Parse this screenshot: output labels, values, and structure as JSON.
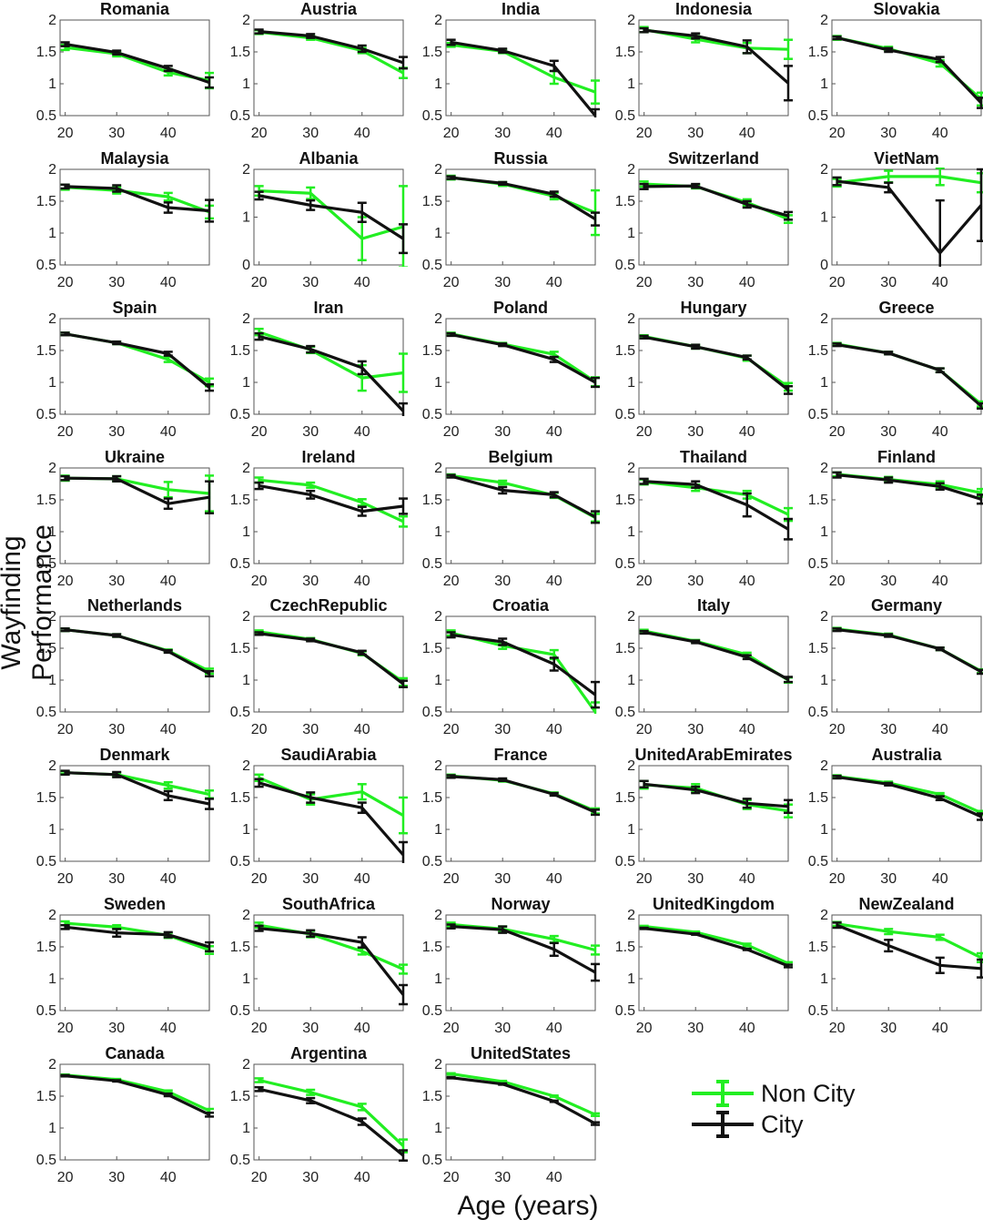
{
  "figure": {
    "ylabel": "Wayfinding Performance",
    "xlabel": "Age (years)"
  },
  "legend": [
    {
      "name": "Non City",
      "color": "#22ee22"
    },
    {
      "name": "City",
      "color": "#111111"
    }
  ],
  "chart_data": {
    "type": "line",
    "layout": "small-multiples",
    "x": [
      20,
      30,
      40,
      48
    ],
    "xticks": [
      20,
      30,
      40
    ],
    "xlim": [
      19,
      48
    ],
    "default_ylim": [
      0.5,
      2
    ],
    "default_yticks": [
      "0.5",
      "1",
      "1.5",
      "2"
    ],
    "series_colors": {
      "noncity": "#22ee22",
      "city": "#111111"
    },
    "panels": [
      {
        "title": "Romania",
        "noncity": [
          1.57,
          1.47,
          1.18,
          1.05
        ],
        "city": [
          1.62,
          1.49,
          1.24,
          1.02
        ],
        "nerr": [
          0.04,
          0.04,
          0.05,
          0.12
        ],
        "cerr": [
          0.03,
          0.03,
          0.04,
          0.08
        ]
      },
      {
        "title": "Austria",
        "noncity": [
          1.81,
          1.72,
          1.52,
          1.17
        ],
        "city": [
          1.82,
          1.75,
          1.55,
          1.33
        ],
        "nerr": [
          0.03,
          0.03,
          0.04,
          0.08
        ],
        "cerr": [
          0.03,
          0.03,
          0.05,
          0.09
        ]
      },
      {
        "title": "India",
        "noncity": [
          1.61,
          1.51,
          1.1,
          0.87
        ],
        "city": [
          1.65,
          1.52,
          1.28,
          0.5
        ],
        "nerr": [
          0.03,
          0.03,
          0.1,
          0.18
        ],
        "cerr": [
          0.04,
          0.03,
          0.08,
          0.1
        ]
      },
      {
        "title": "Indonesia",
        "noncity": [
          1.85,
          1.7,
          1.56,
          1.54
        ],
        "city": [
          1.84,
          1.75,
          1.58,
          1.01
        ],
        "nerr": [
          0.04,
          0.05,
          0.08,
          0.15
        ],
        "cerr": [
          0.03,
          0.04,
          0.1,
          0.27
        ]
      },
      {
        "title": "Slovakia",
        "noncity": [
          1.72,
          1.55,
          1.32,
          0.76
        ],
        "city": [
          1.72,
          1.53,
          1.38,
          0.7
        ],
        "nerr": [
          0.03,
          0.03,
          0.05,
          0.1
        ],
        "cerr": [
          0.02,
          0.03,
          0.04,
          0.08
        ]
      },
      {
        "title": "Malaysia",
        "noncity": [
          1.72,
          1.67,
          1.57,
          1.33
        ],
        "city": [
          1.73,
          1.7,
          1.4,
          1.35
        ],
        "nerr": [
          0.04,
          0.05,
          0.06,
          0.1
        ],
        "cerr": [
          0.03,
          0.05,
          0.08,
          0.17
        ]
      },
      {
        "title": "Albania",
        "ylim": [
          0,
          2
        ],
        "yticks": [
          "0",
          "1",
          "2"
        ],
        "noncity": [
          1.55,
          1.5,
          0.55,
          0.8
        ],
        "city": [
          1.45,
          1.25,
          1.1,
          0.55
        ],
        "nerr": [
          0.1,
          0.12,
          0.45,
          0.85
        ],
        "cerr": [
          0.08,
          0.1,
          0.2,
          0.3
        ]
      },
      {
        "title": "Russia",
        "noncity": [
          1.87,
          1.77,
          1.58,
          1.32
        ],
        "city": [
          1.87,
          1.78,
          1.61,
          1.22
        ],
        "nerr": [
          0.03,
          0.03,
          0.05,
          0.35
        ],
        "cerr": [
          0.02,
          0.02,
          0.04,
          0.1
        ]
      },
      {
        "title": "Switzerland",
        "noncity": [
          1.77,
          1.73,
          1.48,
          1.22
        ],
        "city": [
          1.73,
          1.74,
          1.45,
          1.27
        ],
        "nerr": [
          0.04,
          0.03,
          0.05,
          0.06
        ],
        "cerr": [
          0.04,
          0.03,
          0.05,
          0.06
        ]
      },
      {
        "title": "VietNam",
        "ylim": [
          0,
          2
        ],
        "yticks": [
          "0",
          "1",
          "2"
        ],
        "noncity": [
          1.72,
          1.85,
          1.85,
          1.72
        ],
        "city": [
          1.75,
          1.62,
          0.25,
          1.25
        ],
        "nerr": [
          0.08,
          0.12,
          0.18,
          0.2
        ],
        "cerr": [
          0.08,
          0.1,
          1.1,
          0.75
        ]
      },
      {
        "title": "Spain",
        "noncity": [
          1.76,
          1.62,
          1.36,
          1.0
        ],
        "city": [
          1.76,
          1.62,
          1.45,
          0.92
        ],
        "nerr": [
          0.02,
          0.02,
          0.04,
          0.06
        ],
        "cerr": [
          0.02,
          0.02,
          0.03,
          0.05
        ]
      },
      {
        "title": "Iran",
        "noncity": [
          1.79,
          1.51,
          1.07,
          1.15
        ],
        "city": [
          1.72,
          1.52,
          1.23,
          0.55
        ],
        "nerr": [
          0.05,
          0.05,
          0.2,
          0.3
        ],
        "cerr": [
          0.05,
          0.05,
          0.1,
          0.12
        ]
      },
      {
        "title": "Poland",
        "noncity": [
          1.76,
          1.6,
          1.44,
          1.01
        ],
        "city": [
          1.75,
          1.59,
          1.36,
          1.0
        ],
        "nerr": [
          0.02,
          0.02,
          0.04,
          0.07
        ],
        "cerr": [
          0.02,
          0.02,
          0.04,
          0.07
        ]
      },
      {
        "title": "Hungary",
        "noncity": [
          1.72,
          1.56,
          1.38,
          0.93
        ],
        "city": [
          1.71,
          1.56,
          1.39,
          0.88
        ],
        "nerr": [
          0.02,
          0.03,
          0.04,
          0.06
        ],
        "cerr": [
          0.02,
          0.03,
          0.03,
          0.06
        ]
      },
      {
        "title": "Greece",
        "noncity": [
          1.6,
          1.46,
          1.19,
          0.66
        ],
        "city": [
          1.59,
          1.46,
          1.19,
          0.63
        ],
        "nerr": [
          0.02,
          0.02,
          0.03,
          0.04
        ],
        "cerr": [
          0.02,
          0.02,
          0.03,
          0.04
        ]
      },
      {
        "title": "Ukraine",
        "noncity": [
          1.84,
          1.83,
          1.66,
          1.6
        ],
        "city": [
          1.84,
          1.83,
          1.44,
          1.54
        ],
        "nerr": [
          0.04,
          0.04,
          0.12,
          0.28
        ],
        "cerr": [
          0.03,
          0.04,
          0.08,
          0.25
        ]
      },
      {
        "title": "Ireland",
        "noncity": [
          1.81,
          1.73,
          1.46,
          1.16
        ],
        "city": [
          1.72,
          1.58,
          1.32,
          1.4
        ],
        "nerr": [
          0.04,
          0.04,
          0.05,
          0.08
        ],
        "cerr": [
          0.05,
          0.06,
          0.07,
          0.12
        ]
      },
      {
        "title": "Belgium",
        "noncity": [
          1.88,
          1.77,
          1.57,
          1.22
        ],
        "city": [
          1.87,
          1.65,
          1.58,
          1.23
        ],
        "nerr": [
          0.02,
          0.03,
          0.04,
          0.06
        ],
        "cerr": [
          0.02,
          0.05,
          0.04,
          0.09
        ]
      },
      {
        "title": "Thailand",
        "noncity": [
          1.78,
          1.69,
          1.58,
          1.27
        ],
        "city": [
          1.79,
          1.74,
          1.42,
          1.04
        ],
        "nerr": [
          0.04,
          0.05,
          0.06,
          0.1
        ],
        "cerr": [
          0.04,
          0.05,
          0.18,
          0.16
        ]
      },
      {
        "title": "Finland",
        "noncity": [
          1.9,
          1.82,
          1.74,
          1.61
        ],
        "city": [
          1.89,
          1.81,
          1.71,
          1.51
        ],
        "nerr": [
          0.03,
          0.04,
          0.05,
          0.06
        ],
        "cerr": [
          0.04,
          0.04,
          0.05,
          0.07
        ]
      },
      {
        "title": "Netherlands",
        "noncity": [
          1.79,
          1.7,
          1.46,
          1.14
        ],
        "city": [
          1.79,
          1.7,
          1.45,
          1.1
        ],
        "nerr": [
          0.02,
          0.02,
          0.02,
          0.04
        ],
        "cerr": [
          0.02,
          0.02,
          0.02,
          0.04
        ]
      },
      {
        "title": "CzechRepublic",
        "noncity": [
          1.76,
          1.64,
          1.42,
          0.97
        ],
        "city": [
          1.73,
          1.63,
          1.43,
          0.94
        ],
        "nerr": [
          0.02,
          0.02,
          0.03,
          0.06
        ],
        "cerr": [
          0.02,
          0.02,
          0.03,
          0.05
        ]
      },
      {
        "title": "Croatia",
        "noncity": [
          1.74,
          1.54,
          1.4,
          0.5
        ],
        "city": [
          1.71,
          1.6,
          1.25,
          0.77
        ],
        "nerr": [
          0.04,
          0.05,
          0.07,
          0.15
        ],
        "cerr": [
          0.04,
          0.05,
          0.1,
          0.2
        ]
      },
      {
        "title": "Italy",
        "noncity": [
          1.77,
          1.61,
          1.4,
          1.0
        ],
        "city": [
          1.75,
          1.6,
          1.36,
          1.01
        ],
        "nerr": [
          0.02,
          0.02,
          0.03,
          0.04
        ],
        "cerr": [
          0.02,
          0.02,
          0.03,
          0.04
        ]
      },
      {
        "title": "Germany",
        "noncity": [
          1.8,
          1.71,
          1.49,
          1.14
        ],
        "city": [
          1.79,
          1.7,
          1.49,
          1.13
        ],
        "nerr": [
          0.02,
          0.02,
          0.02,
          0.03
        ],
        "cerr": [
          0.02,
          0.02,
          0.02,
          0.03
        ]
      },
      {
        "title": "Denmark",
        "noncity": [
          1.89,
          1.86,
          1.69,
          1.55
        ],
        "city": [
          1.89,
          1.86,
          1.53,
          1.4
        ],
        "nerr": [
          0.02,
          0.03,
          0.05,
          0.06
        ],
        "cerr": [
          0.03,
          0.04,
          0.07,
          0.08
        ]
      },
      {
        "title": "SaudiArabia",
        "noncity": [
          1.81,
          1.47,
          1.59,
          1.22
        ],
        "city": [
          1.73,
          1.5,
          1.34,
          0.6
        ],
        "nerr": [
          0.05,
          0.08,
          0.12,
          0.28
        ],
        "cerr": [
          0.06,
          0.08,
          0.08,
          0.2
        ]
      },
      {
        "title": "France",
        "noncity": [
          1.84,
          1.77,
          1.56,
          1.29
        ],
        "city": [
          1.83,
          1.78,
          1.55,
          1.27
        ],
        "nerr": [
          0.02,
          0.02,
          0.02,
          0.04
        ],
        "cerr": [
          0.02,
          0.02,
          0.02,
          0.04
        ]
      },
      {
        "title": "UnitedArabEmirates",
        "noncity": [
          1.7,
          1.65,
          1.39,
          1.29
        ],
        "city": [
          1.71,
          1.62,
          1.41,
          1.36
        ],
        "nerr": [
          0.06,
          0.06,
          0.07,
          0.1
        ],
        "cerr": [
          0.05,
          0.05,
          0.07,
          0.1
        ]
      },
      {
        "title": "Australia",
        "noncity": [
          1.83,
          1.73,
          1.55,
          1.26
        ],
        "city": [
          1.82,
          1.71,
          1.49,
          1.2
        ],
        "nerr": [
          0.02,
          0.02,
          0.02,
          0.03
        ],
        "cerr": [
          0.02,
          0.02,
          0.03,
          0.05
        ]
      },
      {
        "title": "Sweden",
        "noncity": [
          1.87,
          1.81,
          1.68,
          1.45
        ],
        "city": [
          1.81,
          1.72,
          1.69,
          1.5
        ],
        "nerr": [
          0.03,
          0.03,
          0.04,
          0.06
        ],
        "cerr": [
          0.03,
          0.06,
          0.04,
          0.07
        ]
      },
      {
        "title": "SouthAfrica",
        "noncity": [
          1.84,
          1.7,
          1.43,
          1.15
        ],
        "city": [
          1.79,
          1.71,
          1.57,
          0.75
        ],
        "nerr": [
          0.04,
          0.05,
          0.05,
          0.07
        ],
        "cerr": [
          0.04,
          0.05,
          0.08,
          0.15
        ]
      },
      {
        "title": "Norway",
        "noncity": [
          1.85,
          1.78,
          1.62,
          1.45
        ],
        "city": [
          1.82,
          1.77,
          1.46,
          1.1
        ],
        "nerr": [
          0.03,
          0.04,
          0.05,
          0.07
        ],
        "cerr": [
          0.03,
          0.05,
          0.1,
          0.13
        ]
      },
      {
        "title": "UnitedKingdom",
        "noncity": [
          1.82,
          1.73,
          1.53,
          1.24
        ],
        "city": [
          1.79,
          1.7,
          1.46,
          1.2
        ],
        "nerr": [
          0.01,
          0.01,
          0.02,
          0.02
        ],
        "cerr": [
          0.01,
          0.01,
          0.01,
          0.02
        ]
      },
      {
        "title": "NewZealand",
        "noncity": [
          1.86,
          1.74,
          1.65,
          1.33
        ],
        "city": [
          1.84,
          1.52,
          1.21,
          1.16
        ],
        "nerr": [
          0.03,
          0.04,
          0.04,
          0.07
        ],
        "cerr": [
          0.04,
          0.09,
          0.12,
          0.14
        ]
      },
      {
        "title": "Canada",
        "noncity": [
          1.83,
          1.76,
          1.57,
          1.27
        ],
        "city": [
          1.82,
          1.74,
          1.52,
          1.21
        ],
        "nerr": [
          0.01,
          0.01,
          0.02,
          0.03
        ],
        "cerr": [
          0.01,
          0.01,
          0.02,
          0.03
        ]
      },
      {
        "title": "Argentina",
        "noncity": [
          1.75,
          1.56,
          1.33,
          0.72
        ],
        "city": [
          1.61,
          1.43,
          1.1,
          0.57
        ],
        "nerr": [
          0.03,
          0.04,
          0.05,
          0.1
        ],
        "cerr": [
          0.03,
          0.04,
          0.05,
          0.08
        ]
      },
      {
        "title": "UnitedStates",
        "noncity": [
          1.85,
          1.73,
          1.5,
          1.21
        ],
        "city": [
          1.79,
          1.69,
          1.42,
          1.07
        ],
        "nerr": [
          0.01,
          0.01,
          0.01,
          0.02
        ],
        "cerr": [
          0.01,
          0.01,
          0.01,
          0.02
        ]
      }
    ]
  }
}
